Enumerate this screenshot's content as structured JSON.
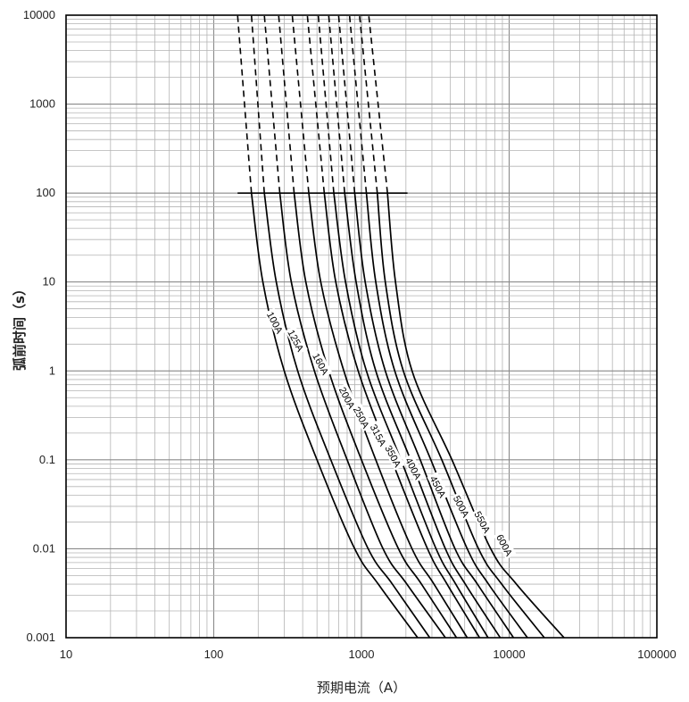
{
  "chart_data": {
    "type": "line",
    "title": "",
    "xlabel": "预期电流（A）",
    "ylabel": "弧前时间（s）",
    "x_scale": "log",
    "y_scale": "log",
    "xlim": [
      10,
      100000
    ],
    "ylim": [
      0.001,
      10000
    ],
    "x_ticks": [
      "10",
      "100",
      "1000",
      "10000",
      "100000"
    ],
    "y_ticks": [
      "0.001",
      "0.01",
      "0.1",
      "1",
      "10",
      "100",
      "1000",
      "10000"
    ],
    "grid": true,
    "legend": "none",
    "reference_line": {
      "y": 100,
      "x_from": 145,
      "x_to": 2050
    },
    "series": [
      {
        "name": "100A",
        "line": [
          [
            180,
            100
          ],
          [
            215,
            10
          ],
          [
            300,
            1
          ],
          [
            500,
            0.1
          ],
          [
            900,
            0.01
          ],
          [
            1300,
            0.004
          ],
          [
            2400,
            0.001
          ]
        ],
        "dashed": [
          [
            180,
            100
          ],
          [
            145,
            10000
          ]
        ]
      },
      {
        "name": "125A",
        "line": [
          [
            220,
            100
          ],
          [
            265,
            10
          ],
          [
            370,
            1
          ],
          [
            620,
            0.1
          ],
          [
            1110,
            0.01
          ],
          [
            1620,
            0.004
          ],
          [
            2900,
            0.001
          ]
        ],
        "dashed": [
          [
            220,
            100
          ],
          [
            180,
            10000
          ]
        ]
      },
      {
        "name": "160A",
        "line": [
          [
            280,
            100
          ],
          [
            335,
            10
          ],
          [
            480,
            1
          ],
          [
            800,
            0.1
          ],
          [
            1400,
            0.01
          ],
          [
            2030,
            0.004
          ],
          [
            3700,
            0.001
          ]
        ],
        "dashed": [
          [
            280,
            100
          ],
          [
            220,
            10000
          ]
        ]
      },
      {
        "name": "200A",
        "line": [
          [
            350,
            100
          ],
          [
            420,
            10
          ],
          [
            600,
            1
          ],
          [
            1000,
            0.1
          ],
          [
            1780,
            0.01
          ],
          [
            2550,
            0.004
          ],
          [
            4400,
            0.001
          ]
        ],
        "dashed": [
          [
            350,
            100
          ],
          [
            275,
            10000
          ]
        ]
      },
      {
        "name": "250A",
        "line": [
          [
            440,
            100
          ],
          [
            530,
            10
          ],
          [
            760,
            1
          ],
          [
            1250,
            0.1
          ],
          [
            2200,
            0.01
          ],
          [
            3100,
            0.004
          ],
          [
            5200,
            0.001
          ]
        ],
        "dashed": [
          [
            440,
            100
          ],
          [
            340,
            10000
          ]
        ]
      },
      {
        "name": "315A",
        "line": [
          [
            560,
            100
          ],
          [
            670,
            10
          ],
          [
            950,
            1
          ],
          [
            1600,
            0.1
          ],
          [
            2800,
            0.01
          ],
          [
            3800,
            0.004
          ],
          [
            6300,
            0.001
          ]
        ],
        "dashed": [
          [
            560,
            100
          ],
          [
            430,
            10000
          ]
        ]
      },
      {
        "name": "350A",
        "line": [
          [
            650,
            100
          ],
          [
            780,
            10
          ],
          [
            1080,
            1
          ],
          [
            1850,
            0.1
          ],
          [
            3200,
            0.01
          ],
          [
            4350,
            0.004
          ],
          [
            7200,
            0.001
          ]
        ],
        "dashed": [
          [
            650,
            100
          ],
          [
            510,
            10000
          ]
        ]
      },
      {
        "name": "400A",
        "line": [
          [
            770,
            100
          ],
          [
            920,
            10
          ],
          [
            1250,
            1
          ],
          [
            2150,
            0.1
          ],
          [
            3700,
            0.01
          ],
          [
            5050,
            0.004
          ],
          [
            8700,
            0.001
          ]
        ],
        "dashed": [
          [
            770,
            100
          ],
          [
            600,
            10000
          ]
        ]
      },
      {
        "name": "450A",
        "line": [
          [
            900,
            100
          ],
          [
            1060,
            10
          ],
          [
            1450,
            1
          ],
          [
            2500,
            0.1
          ],
          [
            4300,
            0.01
          ],
          [
            6100,
            0.004
          ],
          [
            10700,
            0.001
          ]
        ],
        "dashed": [
          [
            900,
            100
          ],
          [
            700,
            10000
          ]
        ]
      },
      {
        "name": "500A",
        "line": [
          [
            1080,
            100
          ],
          [
            1250,
            10
          ],
          [
            1680,
            1
          ],
          [
            2950,
            0.1
          ],
          [
            5200,
            0.01
          ],
          [
            7250,
            0.004
          ],
          [
            13300,
            0.001
          ]
        ],
        "dashed": [
          [
            1080,
            100
          ],
          [
            830,
            10000
          ]
        ]
      },
      {
        "name": "550A",
        "line": [
          [
            1280,
            100
          ],
          [
            1450,
            10
          ],
          [
            1920,
            1
          ],
          [
            3500,
            0.1
          ],
          [
            6200,
            0.01
          ],
          [
            8900,
            0.004
          ],
          [
            17300,
            0.001
          ]
        ],
        "dashed": [
          [
            1280,
            100
          ],
          [
            970,
            10000
          ]
        ]
      },
      {
        "name": "600A",
        "line": [
          [
            1500,
            100
          ],
          [
            1700,
            10
          ],
          [
            2200,
            1
          ],
          [
            4100,
            0.1
          ],
          [
            7500,
            0.01
          ],
          [
            11200,
            0.004
          ],
          [
            23500,
            0.001
          ]
        ],
        "dashed": [
          [
            1500,
            100
          ],
          [
            1120,
            10000
          ]
        ]
      }
    ],
    "curve_labels": [
      {
        "text": "100A",
        "x": 260,
        "y": 3.5
      },
      {
        "text": "125A",
        "x": 360,
        "y": 2.2
      },
      {
        "text": "160A",
        "x": 530,
        "y": 1.2
      },
      {
        "text": "200A",
        "x": 800,
        "y": 0.5
      },
      {
        "text": "250A",
        "x": 1000,
        "y": 0.3
      },
      {
        "text": "315A",
        "x": 1300,
        "y": 0.19
      },
      {
        "text": "350A",
        "x": 1640,
        "y": 0.11
      },
      {
        "text": "400A",
        "x": 2250,
        "y": 0.08
      },
      {
        "text": "450A",
        "x": 3300,
        "y": 0.05
      },
      {
        "text": "500A",
        "x": 4750,
        "y": 0.03
      },
      {
        "text": "550A",
        "x": 6600,
        "y": 0.02
      },
      {
        "text": "600A",
        "x": 9300,
        "y": 0.011
      }
    ]
  }
}
